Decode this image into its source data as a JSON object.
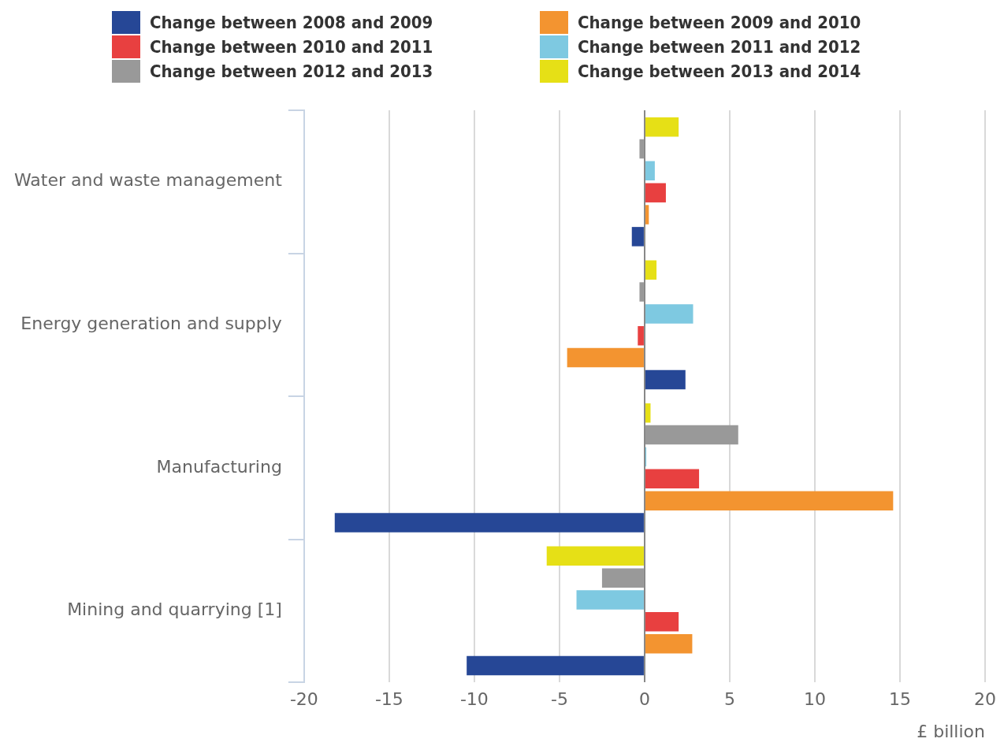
{
  "chart_data": {
    "type": "bar",
    "orientation": "horizontal",
    "xlabel": "£ billion",
    "categories": [
      "Water and waste management",
      "Energy generation and supply",
      "Manufacturing",
      "Mining and quarrying [1]"
    ],
    "series": [
      {
        "name": "Change between 2008 and 2009",
        "color": "#264796",
        "values": [
          -0.75,
          2.4,
          -18.2,
          -10.45
        ]
      },
      {
        "name": "Change between 2009 and 2010",
        "color": "#f39430",
        "values": [
          0.25,
          -4.55,
          14.6,
          2.8
        ]
      },
      {
        "name": "Change between 2010 and 2011",
        "color": "#e84040",
        "values": [
          1.25,
          -0.4,
          3.2,
          2.0
        ]
      },
      {
        "name": "Change between 2011 and 2012",
        "color": "#7ec9e1",
        "values": [
          0.6,
          2.85,
          0.1,
          -4.0
        ]
      },
      {
        "name": "Change between 2012 and 2013",
        "color": "#999999",
        "values": [
          -0.3,
          -0.3,
          5.5,
          -2.5
        ]
      },
      {
        "name": "Change between 2013 and 2014",
        "color": "#e6e016",
        "values": [
          2.0,
          0.7,
          0.35,
          -5.75
        ]
      }
    ],
    "xlim": [
      -20,
      20
    ],
    "xticks": [
      -20,
      -15,
      -10,
      -5,
      0,
      5,
      10,
      15,
      20
    ],
    "grid": "x",
    "legend": "top"
  }
}
